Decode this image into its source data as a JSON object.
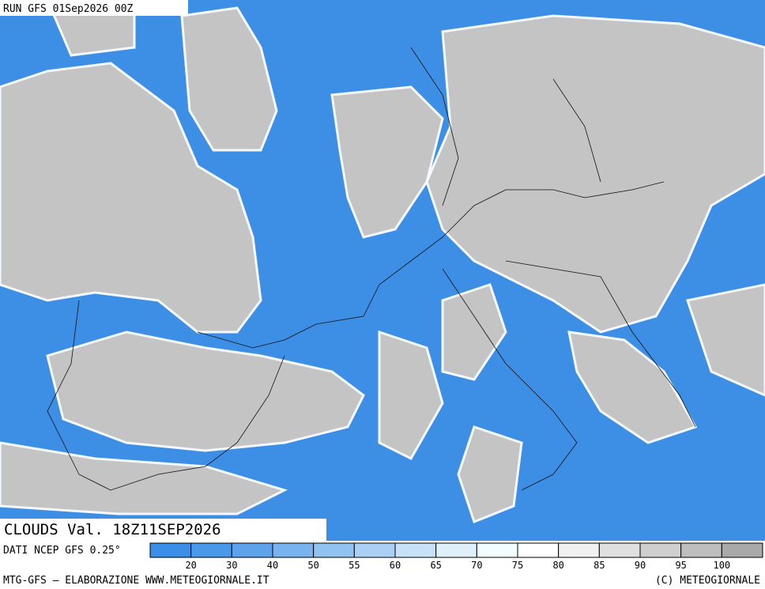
{
  "header": {
    "run": "RUN GFS 01Sep2026 00Z"
  },
  "map": {
    "caption": "CLOUDS Val. 18Z11SEP2026"
  },
  "legend": {
    "source": "DATI NCEP GFS 0.25°",
    "labels": [
      "20",
      "30",
      "40",
      "50",
      "55",
      "60",
      "65",
      "70",
      "75",
      "80",
      "85",
      "90",
      "95",
      "100"
    ],
    "colors": [
      "#3b8fe8",
      "#4a98ea",
      "#5ca3ec",
      "#76b3ef",
      "#90c2f2",
      "#aad1f5",
      "#c6e1f8",
      "#e0f0fb",
      "#f2fdff",
      "#ffffff",
      "#f1f1f1",
      "#e0e0e0",
      "#cfcfcf",
      "#bebebe",
      "#a9a9a9"
    ]
  },
  "footer": {
    "credit": "MTG-GFS — ELABORAZIONE WWW.METEOGIORNALE.IT",
    "copyright": "(C) METEOGIORNALE"
  }
}
